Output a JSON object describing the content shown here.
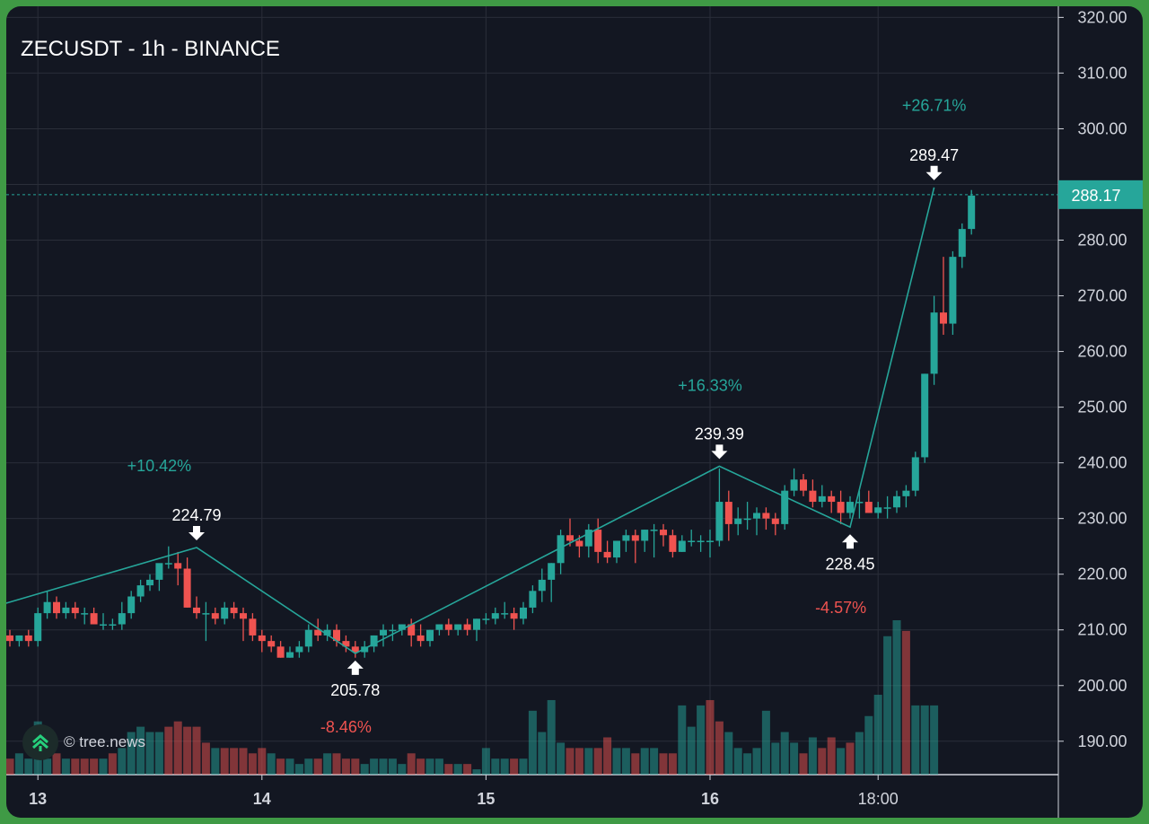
{
  "header": {
    "title": "ZECUSDT - 1h - BINANCE"
  },
  "watermark": {
    "text": "© tree.news",
    "icon": "tree-news-logo-icon"
  },
  "colors": {
    "up": "#26a69a",
    "down": "#ef5350",
    "background": "#131722",
    "grid": "#2a2e39",
    "frame": "#3f9a45"
  },
  "chart_data": {
    "type": "candlestick",
    "title": "ZECUSDT - 1h - BINANCE",
    "ylim": [
      184,
      322
    ],
    "y_ticks": [
      190,
      200,
      210,
      220,
      230,
      240,
      250,
      260,
      270,
      280,
      290,
      300,
      310,
      320
    ],
    "y_tick_labels": [
      "190.00",
      "200.00",
      "210.00",
      "220.00",
      "230.00",
      "240.00",
      "250.00",
      "260.00",
      "270.00",
      "280.00",
      "",
      "300.00",
      "310.00",
      "320.00"
    ],
    "x_labels": [
      {
        "label": "13",
        "bar": 3
      },
      {
        "label": "14",
        "bar": 27
      },
      {
        "label": "15",
        "bar": 51
      },
      {
        "label": "16",
        "bar": 75
      },
      {
        "label": "18:00",
        "bar": 93
      }
    ],
    "last_price": 288.17,
    "last_price_label": "288.17",
    "ohlc": [
      [
        209,
        210,
        207,
        208
      ],
      [
        208,
        209,
        207,
        209
      ],
      [
        209,
        210,
        207,
        208
      ],
      [
        208,
        214,
        207,
        213
      ],
      [
        213,
        217,
        212,
        215
      ],
      [
        215,
        216,
        212,
        213
      ],
      [
        213,
        215,
        212,
        214
      ],
      [
        214,
        215,
        212,
        213
      ],
      [
        213,
        214,
        211,
        213
      ],
      [
        213,
        214,
        211,
        211
      ],
      [
        211,
        213,
        210,
        211
      ],
      [
        211,
        212,
        210,
        211
      ],
      [
        211,
        215,
        210,
        213
      ],
      [
        213,
        217,
        212,
        216
      ],
      [
        216,
        219,
        215,
        218
      ],
      [
        218,
        220,
        217,
        219
      ],
      [
        219,
        221,
        217,
        222
      ],
      [
        222,
        225,
        221,
        222
      ],
      [
        222,
        224,
        218,
        221
      ],
      [
        221,
        223,
        214,
        214
      ],
      [
        214,
        216,
        212,
        213
      ],
      [
        213,
        215,
        208,
        213
      ],
      [
        213,
        214,
        211,
        212
      ],
      [
        212,
        215,
        211,
        214
      ],
      [
        214,
        215,
        212,
        213
      ],
      [
        213,
        214,
        208,
        212
      ],
      [
        212,
        213,
        208,
        209
      ],
      [
        209,
        210,
        206,
        208
      ],
      [
        208,
        209,
        206,
        207
      ],
      [
        207,
        208,
        205,
        205
      ],
      [
        205,
        207,
        205,
        206
      ],
      [
        206,
        208,
        205,
        207
      ],
      [
        207,
        211,
        206,
        210
      ],
      [
        210,
        212,
        208,
        209
      ],
      [
        209,
        211,
        208,
        210
      ],
      [
        210,
        211,
        207,
        208
      ],
      [
        208,
        209,
        206,
        207
      ],
      [
        207,
        208,
        205,
        206
      ],
      [
        206,
        208,
        205,
        207
      ],
      [
        207,
        209,
        206,
        209
      ],
      [
        209,
        211,
        207,
        210
      ],
      [
        210,
        211,
        208,
        210
      ],
      [
        210,
        211,
        209,
        211
      ],
      [
        211,
        212,
        207,
        209
      ],
      [
        209,
        211,
        207,
        208
      ],
      [
        208,
        210,
        207,
        210
      ],
      [
        210,
        211,
        209,
        211
      ],
      [
        211,
        212,
        209,
        210
      ],
      [
        210,
        211,
        209,
        211
      ],
      [
        211,
        212,
        209,
        210
      ],
      [
        210,
        212,
        208,
        212
      ],
      [
        212,
        213,
        211,
        212
      ],
      [
        212,
        214,
        211,
        213
      ],
      [
        213,
        215,
        212,
        213
      ],
      [
        213,
        214,
        210,
        212
      ],
      [
        212,
        215,
        211,
        214
      ],
      [
        214,
        218,
        213,
        217
      ],
      [
        217,
        221,
        215,
        219
      ],
      [
        219,
        222,
        215,
        222
      ],
      [
        222,
        228,
        220,
        227
      ],
      [
        227,
        230,
        225,
        226
      ],
      [
        226,
        227,
        223,
        225
      ],
      [
        225,
        229,
        223,
        228
      ],
      [
        228,
        230,
        222,
        224
      ],
      [
        224,
        226,
        222,
        223
      ],
      [
        223,
        226,
        222,
        226
      ],
      [
        226,
        228,
        224,
        227
      ],
      [
        227,
        228,
        222,
        226
      ],
      [
        226,
        228,
        224,
        228
      ],
      [
        228,
        229,
        223,
        228
      ],
      [
        228,
        229,
        225,
        227
      ],
      [
        227,
        228,
        223,
        224
      ],
      [
        224,
        227,
        224,
        226
      ],
      [
        226,
        228,
        225,
        226
      ],
      [
        226,
        227,
        224,
        226
      ],
      [
        226,
        228,
        223,
        226
      ],
      [
        226,
        239,
        225,
        233
      ],
      [
        233,
        235,
        226,
        229
      ],
      [
        229,
        232,
        227,
        230
      ],
      [
        230,
        233,
        228,
        230
      ],
      [
        230,
        232,
        227,
        231
      ],
      [
        231,
        232,
        228,
        230
      ],
      [
        230,
        231,
        227,
        229
      ],
      [
        229,
        236,
        228,
        235
      ],
      [
        235,
        239,
        234,
        237
      ],
      [
        237,
        238,
        234,
        235
      ],
      [
        235,
        237,
        232,
        233
      ],
      [
        233,
        236,
        232,
        234
      ],
      [
        234,
        235,
        231,
        233
      ],
      [
        233,
        235,
        229,
        231
      ],
      [
        231,
        234,
        230,
        233
      ],
      [
        233,
        235,
        230,
        233
      ],
      [
        233,
        235,
        231,
        231
      ],
      [
        231,
        233,
        230,
        232
      ],
      [
        232,
        234,
        230,
        232
      ],
      [
        232,
        235,
        231,
        234
      ],
      [
        234,
        236,
        232,
        235
      ],
      [
        235,
        242,
        234,
        241
      ],
      [
        241,
        256,
        240,
        256
      ],
      [
        256,
        270,
        254,
        267
      ],
      [
        267,
        277,
        263,
        265
      ],
      [
        265,
        278,
        263,
        277
      ],
      [
        277,
        283,
        275,
        282
      ],
      [
        282,
        289,
        281,
        288
      ]
    ],
    "volumes": [
      3,
      4,
      3,
      10,
      3,
      4,
      3,
      3,
      3,
      3,
      3,
      4,
      5,
      8,
      9,
      8,
      8,
      9,
      10,
      9,
      9,
      6,
      5,
      5,
      5,
      5,
      4,
      5,
      4,
      3,
      3,
      2,
      3,
      3,
      4,
      4,
      3,
      3,
      2,
      3,
      3,
      3,
      2,
      4,
      3,
      3,
      3,
      2,
      2,
      2,
      1,
      5,
      3,
      3,
      3,
      3,
      12,
      8,
      14,
      6,
      5,
      5,
      5,
      5,
      7,
      5,
      5,
      4,
      5,
      5,
      4,
      4,
      13,
      9,
      13,
      14,
      10,
      8,
      5,
      4,
      5,
      12,
      6,
      8,
      6,
      4,
      7,
      5,
      7,
      5,
      6,
      8,
      11,
      15,
      26,
      29,
      27,
      13,
      13,
      13
    ],
    "volume_colors": [
      "down",
      "up",
      "up",
      "up",
      "up",
      "down",
      "up",
      "down",
      "down",
      "down",
      "up",
      "down",
      "up",
      "up",
      "up",
      "up",
      "up",
      "down",
      "down",
      "down",
      "down",
      "down",
      "up",
      "down",
      "down",
      "down",
      "down",
      "down",
      "up",
      "down",
      "up",
      "up",
      "up",
      "down",
      "up",
      "down",
      "down",
      "down",
      "up",
      "up",
      "up",
      "up",
      "up",
      "down",
      "down",
      "up",
      "up",
      "down",
      "up",
      "down",
      "up",
      "up",
      "up",
      "up",
      "down",
      "up",
      "up",
      "up",
      "up",
      "up",
      "down",
      "down",
      "up",
      "down",
      "down",
      "up",
      "up",
      "down",
      "up",
      "up",
      "down",
      "down",
      "up",
      "up",
      "up",
      "down",
      "down",
      "up",
      "up",
      "up",
      "up",
      "up",
      "up",
      "up",
      "up",
      "down",
      "up",
      "down",
      "down",
      "up",
      "down",
      "up",
      "up",
      "up",
      "up",
      "up",
      "down",
      "up",
      "up",
      "up"
    ],
    "zigzag": [
      {
        "bar": -1,
        "price": 214.5
      },
      {
        "bar": 20,
        "price": 224.79,
        "label": "224.79",
        "direction": "high"
      },
      {
        "bar": 37,
        "price": 205.78,
        "label": "205.78",
        "direction": "low"
      },
      {
        "bar": 76,
        "price": 239.39,
        "label": "239.39",
        "direction": "high"
      },
      {
        "bar": 90,
        "price": 228.45,
        "label": "228.45",
        "direction": "low"
      },
      {
        "bar": 99,
        "price": 289.47,
        "label": "289.47",
        "direction": "high"
      }
    ],
    "annotations": [
      {
        "text": "+10.42%",
        "bar": 16,
        "price": 238.5,
        "color": "up"
      },
      {
        "text": "-8.46%",
        "bar": 36,
        "price": 191.6,
        "color": "down"
      },
      {
        "text": "+16.33%",
        "bar": 75,
        "price": 252.9,
        "color": "up"
      },
      {
        "text": "-4.57%",
        "bar": 89,
        "price": 213.0,
        "color": "down"
      },
      {
        "text": "+26.71%",
        "bar": 99,
        "price": 303.2,
        "color": "up"
      }
    ]
  }
}
